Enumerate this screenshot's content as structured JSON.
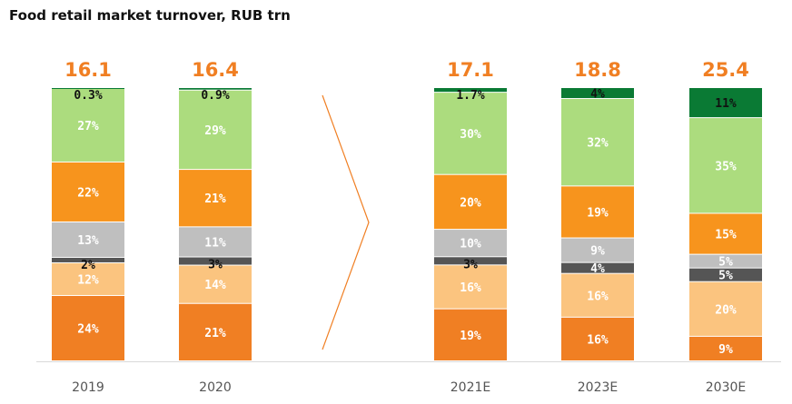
{
  "chart_data": {
    "type": "bar",
    "stacked": true,
    "normalized": true,
    "title": "Food retail market turnover, RUB trn",
    "categories": [
      "2019",
      "2020",
      "2021E",
      "2023E",
      "2030E"
    ],
    "totals": [
      "16.1",
      "16.4",
      "17.1",
      "18.8",
      "25.4"
    ],
    "series": [
      {
        "color": "#f07f23",
        "label_color": "#ffffff",
        "values": [
          24,
          21,
          19,
          16,
          9
        ]
      },
      {
        "color": "#fbc47f",
        "label_color": "#ffffff",
        "values": [
          12,
          14,
          16,
          16,
          20
        ]
      },
      {
        "color": "#555555",
        "label_color": "#ffffff",
        "values": [
          2,
          3,
          3,
          4,
          5
        ]
      },
      {
        "color": "#bfbfbf",
        "label_color": "#ffffff",
        "values": [
          13,
          11,
          10,
          9,
          5
        ]
      },
      {
        "color": "#f7941d",
        "label_color": "#ffffff",
        "values": [
          22,
          21,
          20,
          19,
          15
        ]
      },
      {
        "color": "#acdc7e",
        "label_color": "#ffffff",
        "values": [
          27,
          29,
          30,
          32,
          35
        ]
      },
      {
        "color": "#0a7a34",
        "label_color": "#111111",
        "values": [
          0.3,
          0.9,
          1.7,
          4,
          11
        ]
      }
    ],
    "segment_labels": [
      [
        "24%",
        "21%",
        "19%",
        "16%",
        "9%"
      ],
      [
        "12%",
        "14%",
        "16%",
        "16%",
        "20%"
      ],
      [
        "2%",
        "3%",
        "3%",
        "4%",
        "5%"
      ],
      [
        "13%",
        "11%",
        "10%",
        "9%",
        "5%"
      ],
      [
        "22%",
        "21%",
        "20%",
        "19%",
        "15%"
      ],
      [
        "27%",
        "29%",
        "30%",
        "32%",
        "35%"
      ],
      [
        "0.3%",
        "0.9%",
        "1.7%",
        "4%",
        "11%"
      ]
    ],
    "legend": "none",
    "grid": false,
    "colors": {
      "total_label": "#f07f23",
      "axis": "#d9d9d9",
      "arrow": "#f07f23"
    }
  }
}
